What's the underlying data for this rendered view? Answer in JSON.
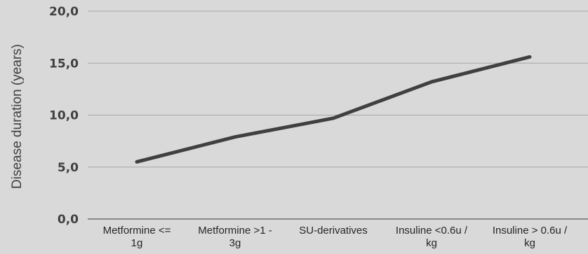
{
  "chart_data": {
    "type": "line",
    "categories": [
      [
        "Metformine <=",
        "1g"
      ],
      [
        "Metformine >1 -",
        "3g"
      ],
      [
        "SU-derivatives"
      ],
      [
        "Insuline <0.6u /",
        "kg"
      ],
      [
        "Insuline > 0.6u /",
        "kg"
      ]
    ],
    "values": [
      5.5,
      7.9,
      9.7,
      13.2,
      15.6
    ],
    "xlabel": "",
    "ylabel": "Disease duration (years)",
    "ylim": [
      0,
      20
    ],
    "yticks": [
      "0,0",
      "5,0",
      "10,0",
      "15,0",
      "20,0"
    ],
    "grid": true,
    "legend": "none",
    "colors": {
      "background": "#d9d9d9",
      "line": "#404040",
      "grid": "#a6a6a6",
      "axis": "#595959"
    }
  }
}
